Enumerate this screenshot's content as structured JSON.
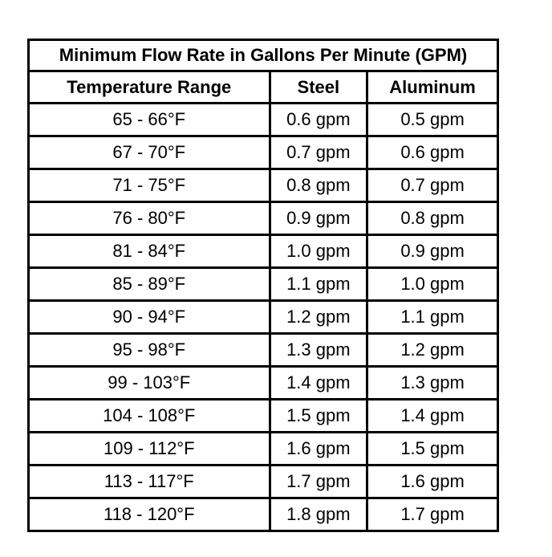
{
  "table": {
    "title": "Minimum Flow Rate in Gallons Per Minute (GPM)",
    "columns": [
      "Temperature Range",
      "Steel",
      "Aluminum"
    ],
    "rows": [
      [
        "65 - 66°F",
        "0.6 gpm",
        "0.5 gpm"
      ],
      [
        "67 - 70°F",
        "0.7 gpm",
        "0.6 gpm"
      ],
      [
        "71 - 75°F",
        "0.8 gpm",
        "0.7 gpm"
      ],
      [
        "76 - 80°F",
        "0.9 gpm",
        "0.8 gpm"
      ],
      [
        "81 - 84°F",
        "1.0 gpm",
        "0.9 gpm"
      ],
      [
        "85 - 89°F",
        "1.1 gpm",
        "1.0 gpm"
      ],
      [
        "90 - 94°F",
        "1.2 gpm",
        "1.1 gpm"
      ],
      [
        "95 - 98°F",
        "1.3 gpm",
        "1.2 gpm"
      ],
      [
        "99 - 103°F",
        "1.4 gpm",
        "1.3 gpm"
      ],
      [
        "104 - 108°F",
        "1.5 gpm",
        "1.4 gpm"
      ],
      [
        "109 - 112°F",
        "1.6 gpm",
        "1.5 gpm"
      ],
      [
        "113 - 117°F",
        "1.7 gpm",
        "1.6 gpm"
      ],
      [
        "118 - 120°F",
        "1.8 gpm",
        "1.7 gpm"
      ]
    ]
  }
}
